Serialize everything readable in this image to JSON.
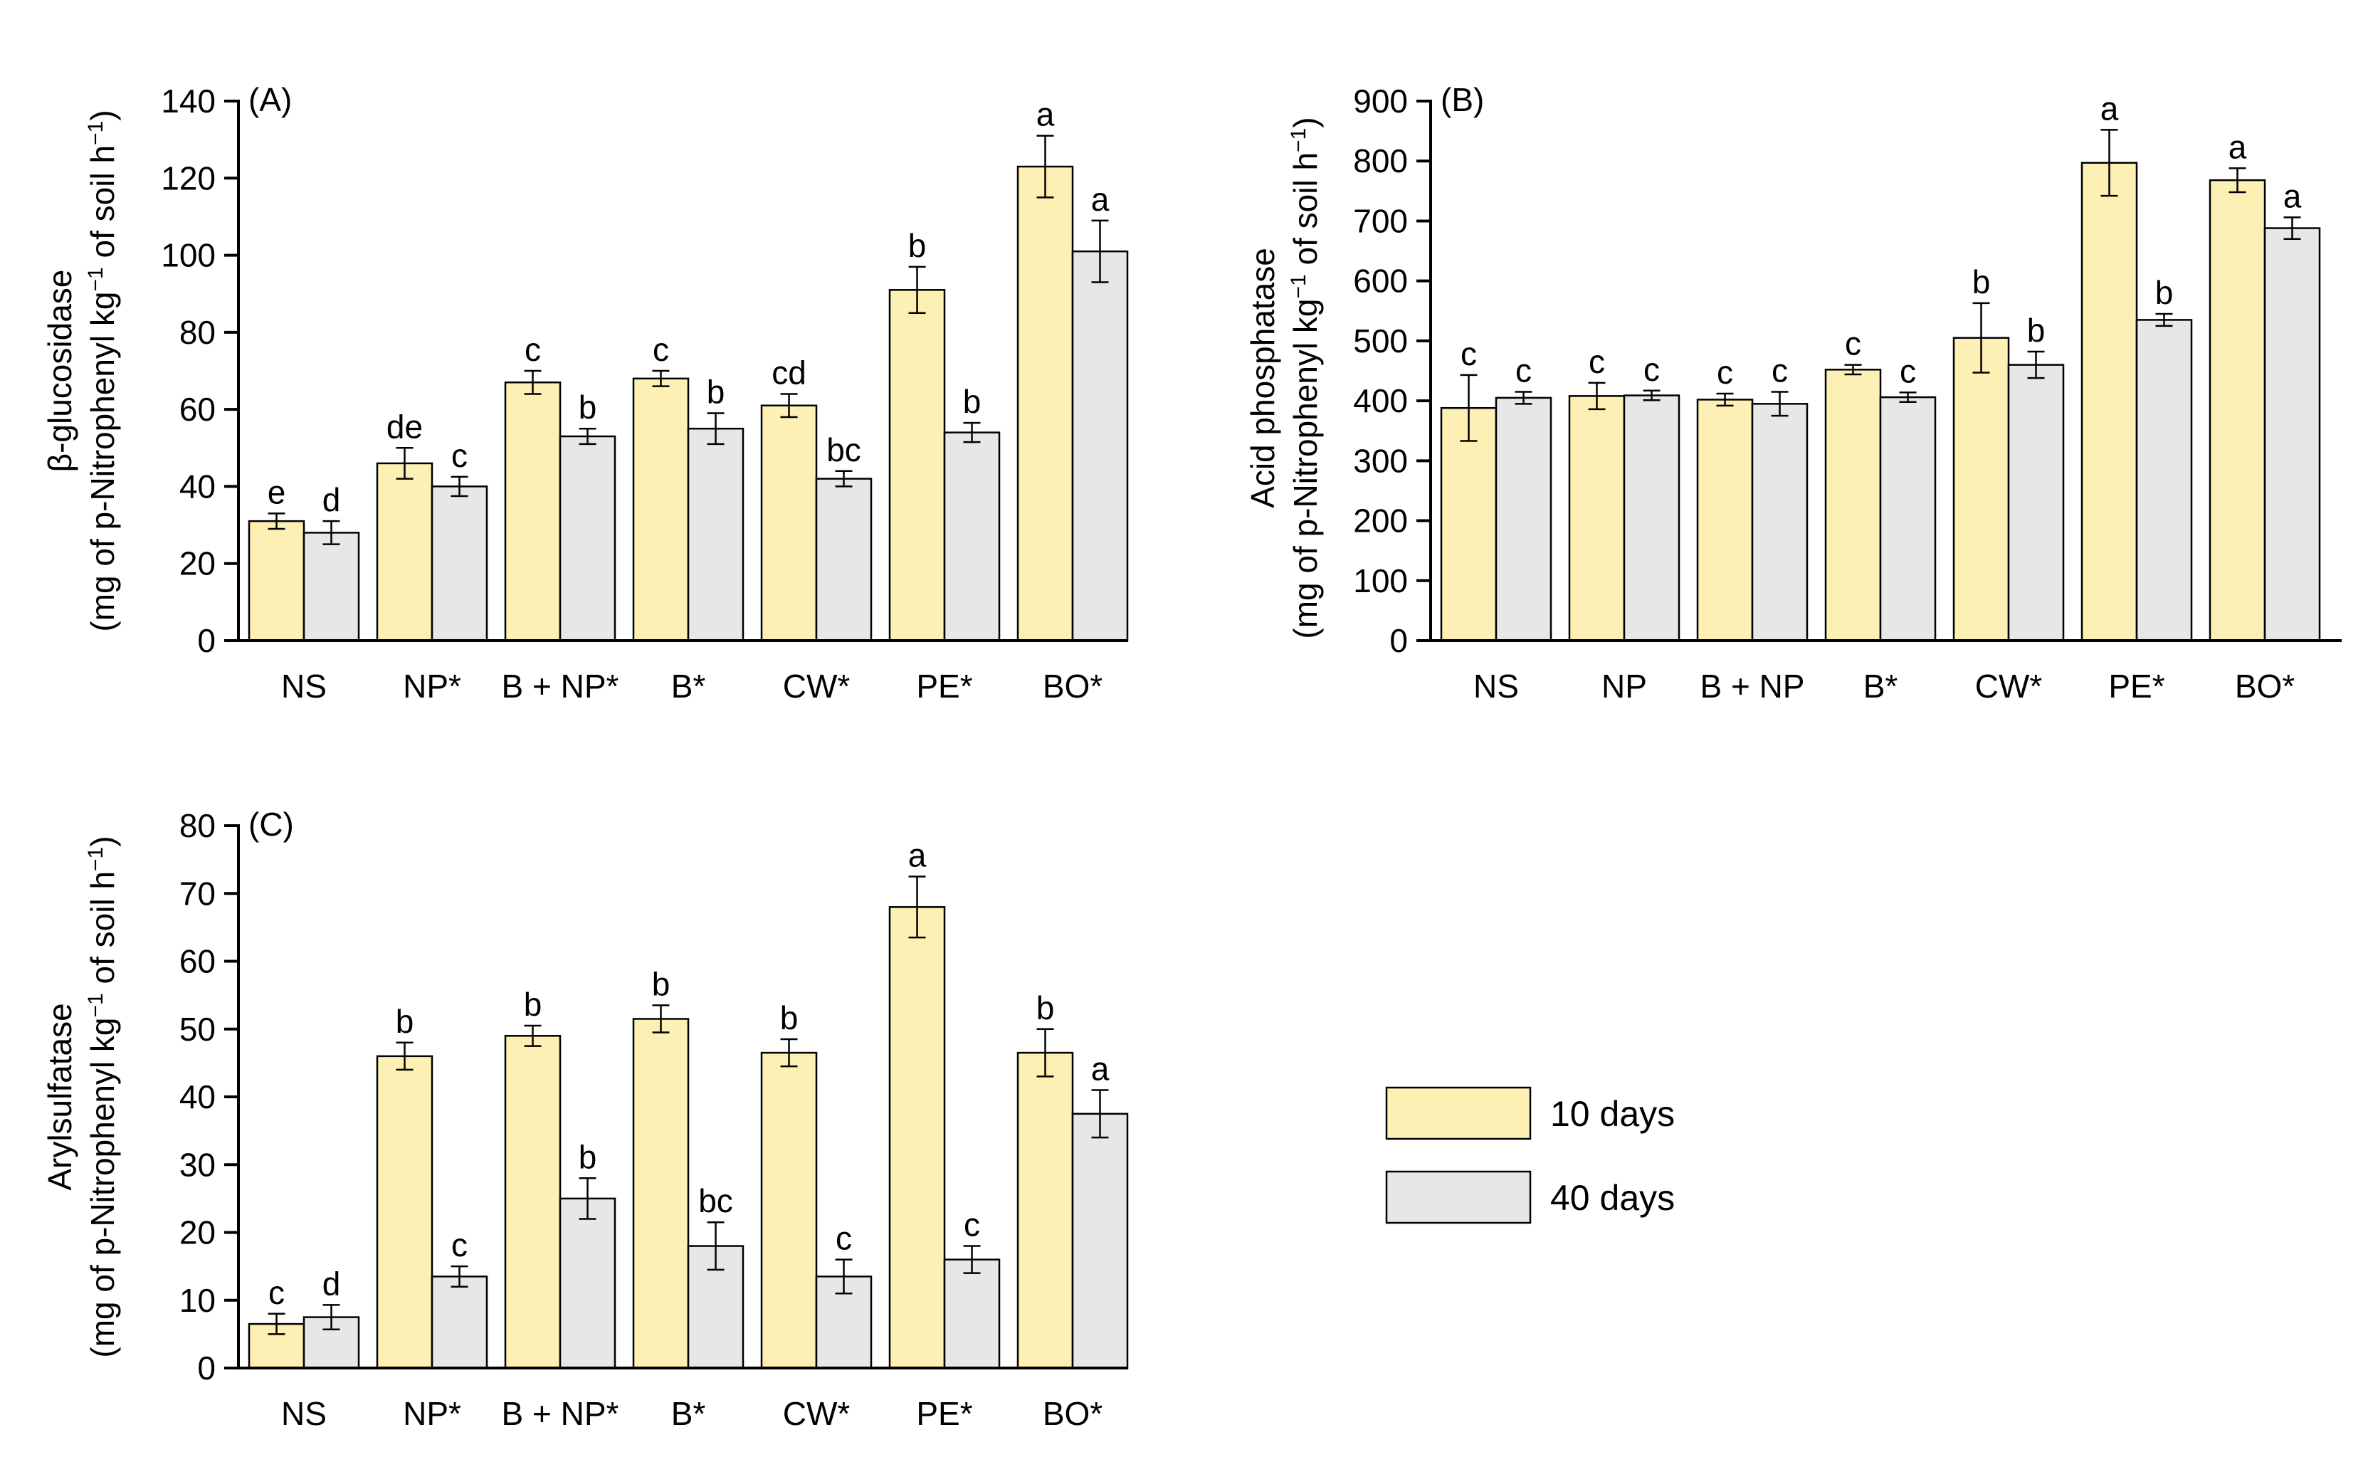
{
  "colors": {
    "series_10": "#FDF0B4",
    "series_40": "#E7E7E7"
  },
  "legend": {
    "items": [
      "10 days",
      "40 days"
    ]
  },
  "chart_data": [
    {
      "type": "bar",
      "panel": "(A)",
      "ylabel_line1": "β-glucosidase",
      "ylabel_line2_pre": "(mg of p-Nitrophenyl kg",
      "ylabel_line2_mid": " of soil h",
      "ylabel_line2_close": ")",
      "ylabel_sup": "−1",
      "categories": [
        "NS",
        "NP*",
        "B + NP*",
        "B*",
        "CW*",
        "PE*",
        "BO*"
      ],
      "ylim": [
        0,
        140
      ],
      "yticks": [
        0,
        20,
        40,
        60,
        80,
        100,
        120,
        140
      ],
      "series": [
        {
          "name": "10 days",
          "values": [
            31,
            46,
            67,
            68,
            61,
            91,
            123
          ],
          "errors": [
            2,
            4,
            3,
            2,
            3,
            6,
            8
          ],
          "labels": [
            "e",
            "de",
            "c",
            "c",
            "cd",
            "b",
            "a"
          ]
        },
        {
          "name": "40 days",
          "values": [
            28,
            40,
            53,
            55,
            42,
            54,
            101
          ],
          "errors": [
            3,
            2.5,
            2,
            4,
            2,
            2.5,
            8
          ],
          "labels": [
            "d",
            "c",
            "b",
            "b",
            "bc",
            "b",
            "a"
          ]
        }
      ]
    },
    {
      "type": "bar",
      "panel": "(B)",
      "ylabel_line1": "Acid phosphatase",
      "ylabel_line2_pre": "(mg of p-Nitrophenyl kg",
      "ylabel_line2_mid": " of soil h",
      "ylabel_line2_close": ")",
      "ylabel_sup": "−1",
      "categories": [
        "NS",
        "NP",
        "B + NP",
        "B*",
        "CW*",
        "PE*",
        "BO*"
      ],
      "ylim": [
        0,
        900
      ],
      "yticks": [
        0,
        100,
        200,
        300,
        400,
        500,
        600,
        700,
        800,
        900
      ],
      "series": [
        {
          "name": "10 days",
          "values": [
            388,
            408,
            402,
            452,
            505,
            797,
            768
          ],
          "errors": [
            55,
            22,
            10,
            8,
            58,
            55,
            20
          ],
          "labels": [
            "c",
            "c",
            "c",
            "c",
            "b",
            "a",
            "a"
          ]
        },
        {
          "name": "40 days",
          "values": [
            405,
            409,
            395,
            406,
            460,
            535,
            688
          ],
          "errors": [
            10,
            8,
            20,
            8,
            22,
            10,
            18
          ],
          "labels": [
            "c",
            "c",
            "c",
            "c",
            "b",
            "b",
            "a"
          ]
        }
      ]
    },
    {
      "type": "bar",
      "panel": "(C)",
      "ylabel_line1": "Arylsulfatase",
      "ylabel_line2_pre": "(mg of p-Nitrophenyl kg",
      "ylabel_line2_mid": " of soil h",
      "ylabel_line2_close": ")",
      "ylabel_sup": "−1",
      "categories": [
        "NS",
        "NP*",
        "B + NP*",
        "B*",
        "CW*",
        "PE*",
        "BO*"
      ],
      "ylim": [
        0,
        80
      ],
      "yticks": [
        0,
        10,
        20,
        30,
        40,
        50,
        60,
        70,
        80
      ],
      "series": [
        {
          "name": "10 days",
          "values": [
            6.5,
            46,
            49,
            51.5,
            46.5,
            68,
            46.5
          ],
          "errors": [
            1.5,
            2,
            1.5,
            2,
            2,
            4.5,
            3.5
          ],
          "labels": [
            "c",
            "b",
            "b",
            "b",
            "b",
            "a",
            "b"
          ]
        },
        {
          "name": "40 days",
          "values": [
            7.5,
            13.5,
            25,
            18,
            13.5,
            16,
            37.5
          ],
          "errors": [
            1.8,
            1.5,
            3,
            3.5,
            2.5,
            2,
            3.5
          ],
          "labels": [
            "d",
            "c",
            "b",
            "bc",
            "c",
            "c",
            "a"
          ]
        }
      ]
    }
  ]
}
